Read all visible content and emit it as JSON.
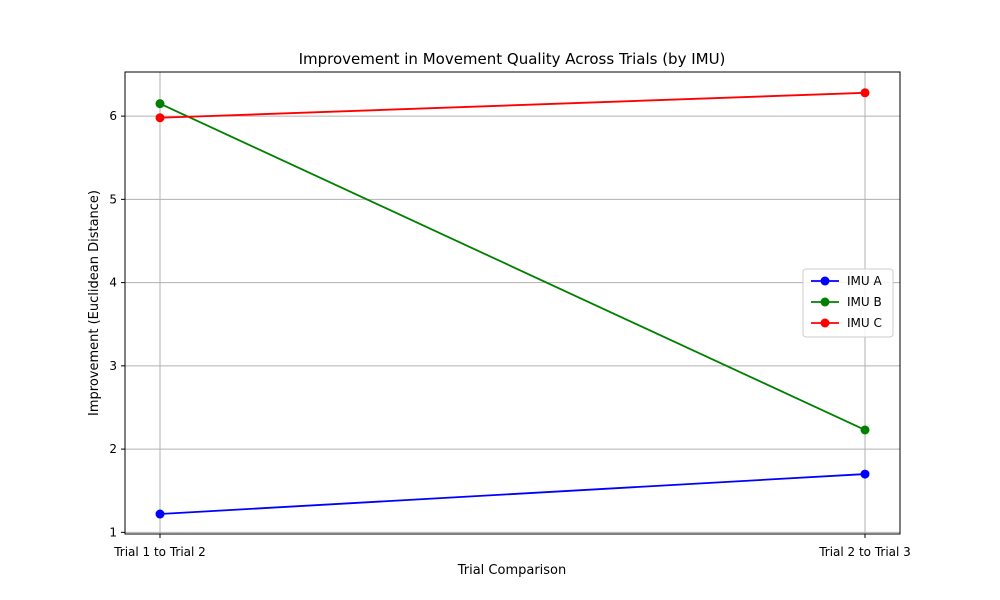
{
  "chart_data": {
    "type": "line",
    "title": "Improvement in Movement Quality Across Trials (by IMU)",
    "xlabel": "Trial Comparison",
    "ylabel": "Improvement (Euclidean Distance)",
    "categories": [
      "Trial 1 to Trial 2",
      "Trial 2 to Trial 3"
    ],
    "ylim": [
      0.98,
      6.53
    ],
    "yticks": [
      1,
      2,
      3,
      4,
      5,
      6
    ],
    "grid": true,
    "legend": "center-right",
    "series": [
      {
        "name": "IMU A",
        "color": "#0000ff",
        "values": [
          1.22,
          1.7
        ]
      },
      {
        "name": "IMU B",
        "color": "#008000",
        "values": [
          6.15,
          2.23
        ]
      },
      {
        "name": "IMU C",
        "color": "#ff0000",
        "values": [
          5.98,
          6.28
        ]
      }
    ]
  }
}
